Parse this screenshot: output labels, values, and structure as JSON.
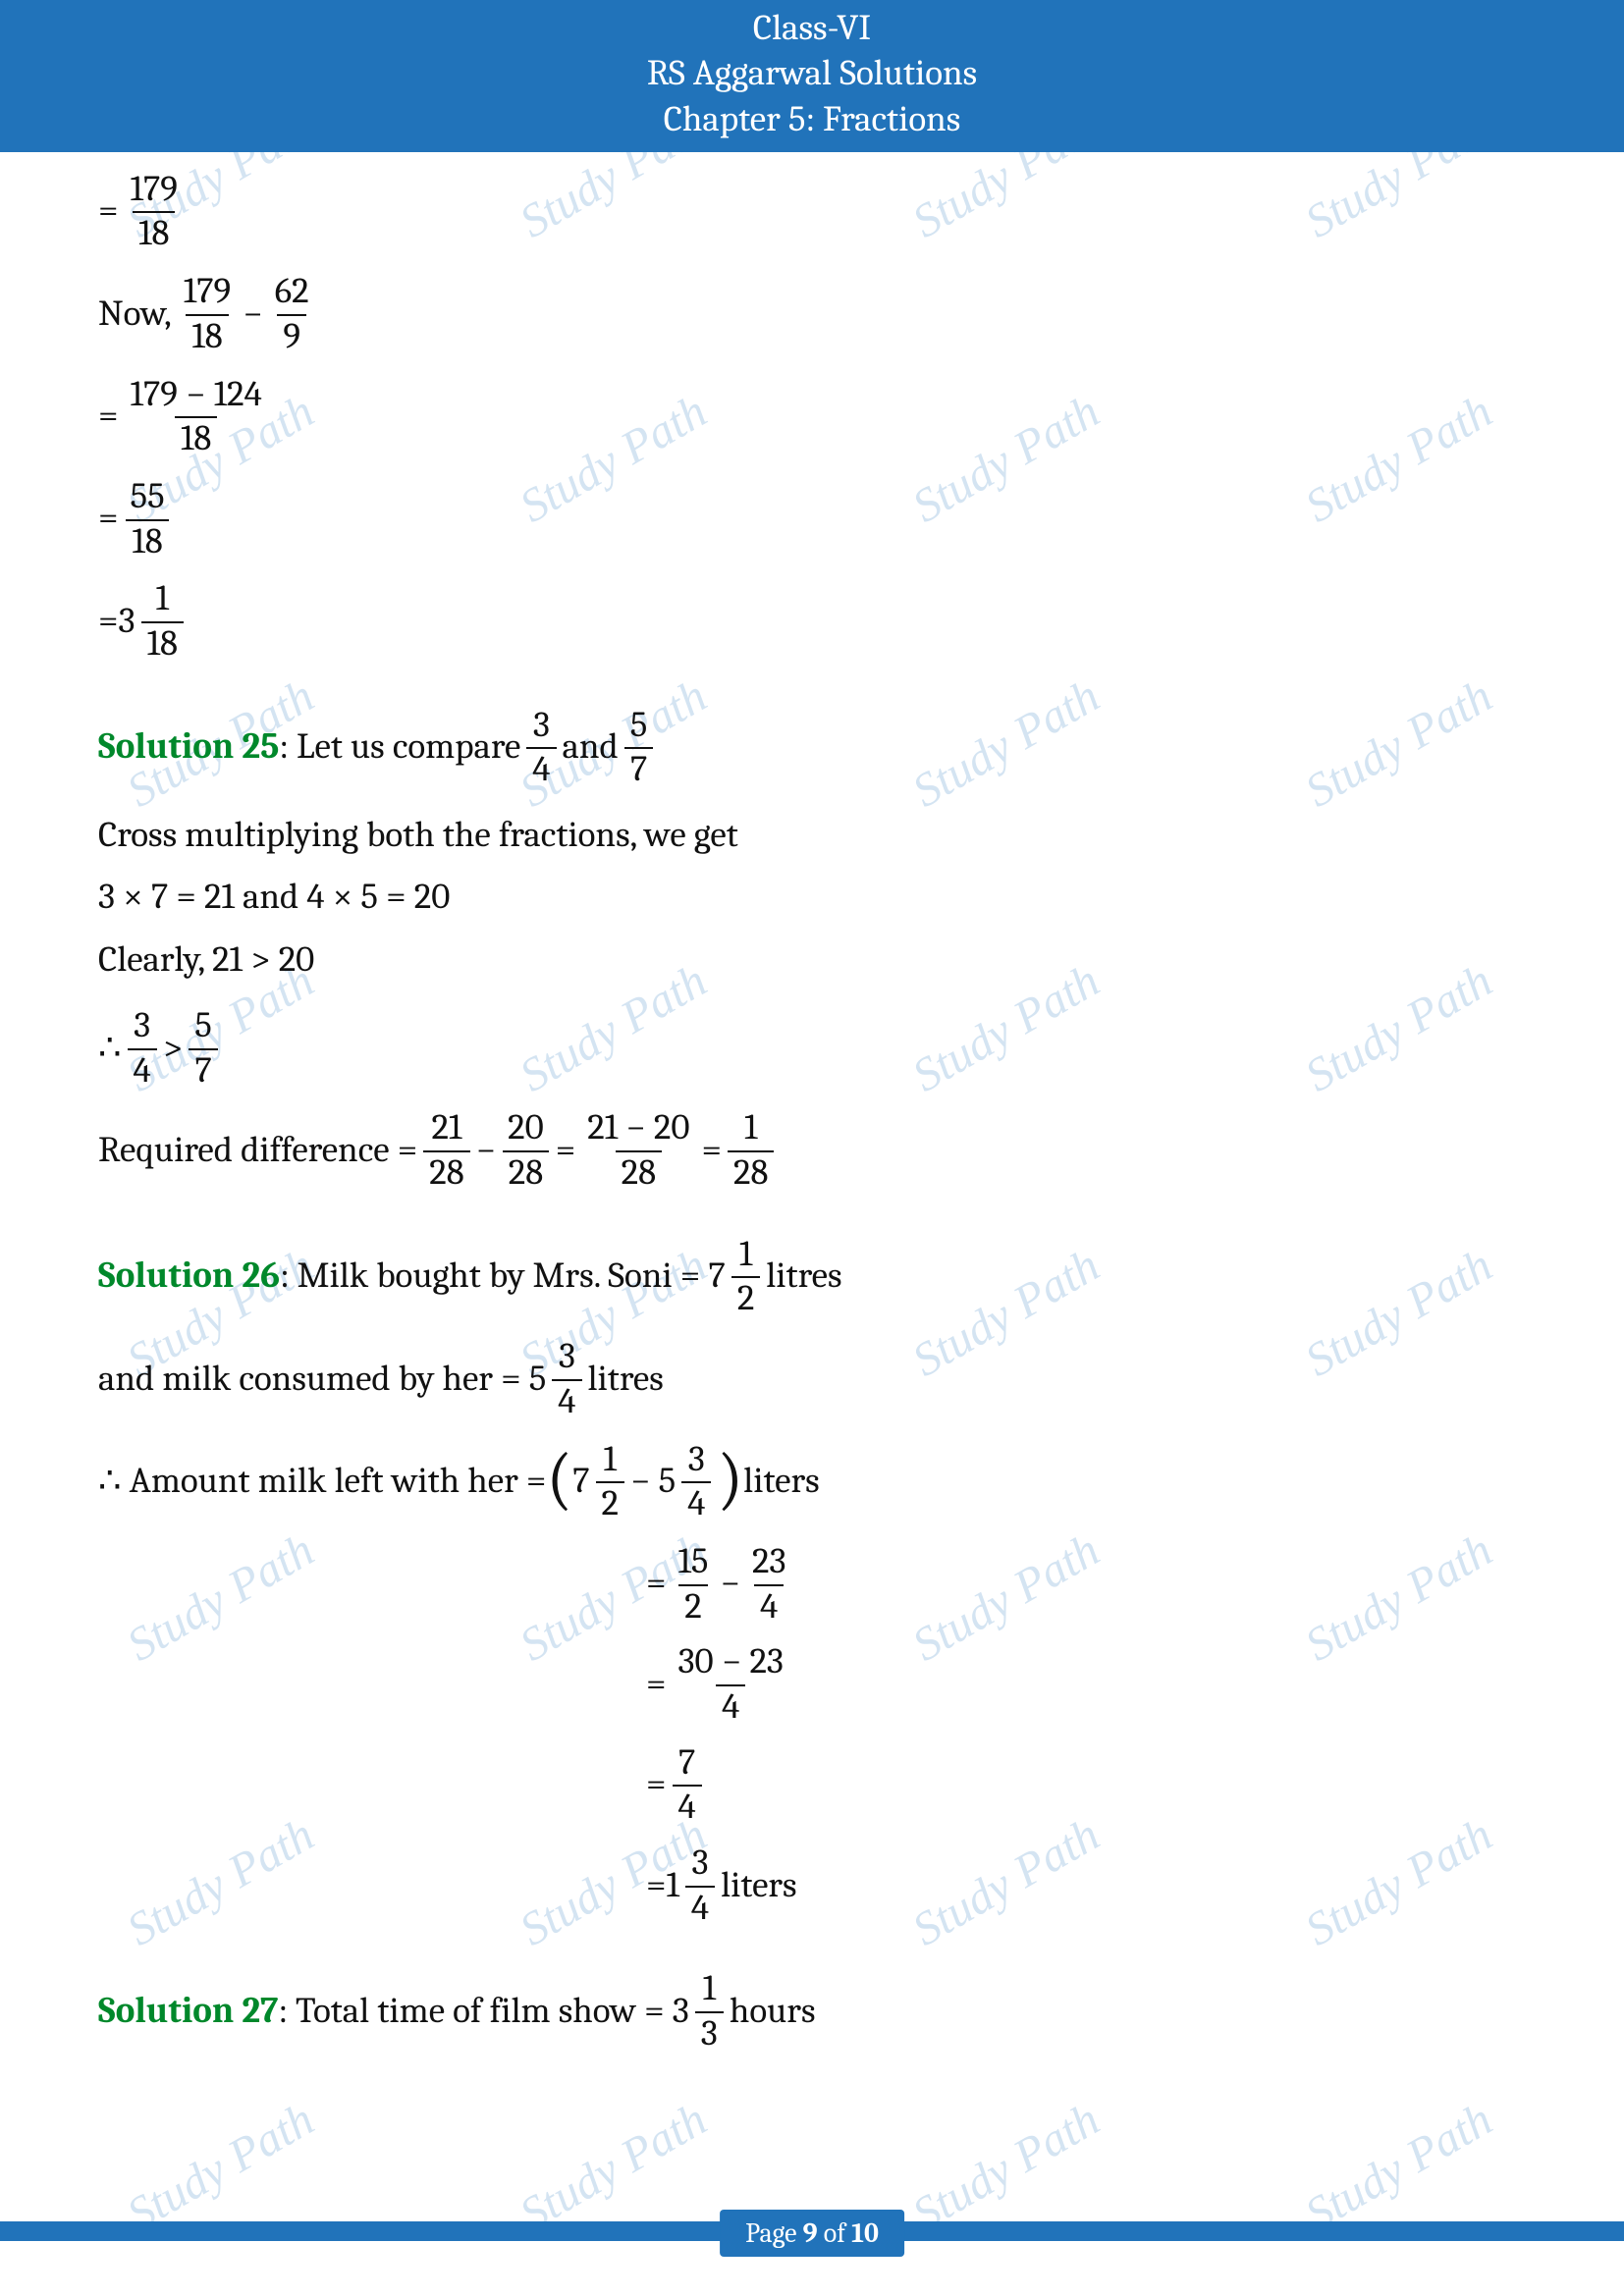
{
  "header": {
    "line1": "Class-VI",
    "line2": "RS Aggarwal Solutions",
    "line3": "Chapter 5: Fractions",
    "bg_color": "#2173ba",
    "text_color": "#ffffff"
  },
  "watermark": {
    "text": "Study Path",
    "color": "rgba(82,147,202,0.25)"
  },
  "cont": {
    "step1": {
      "num": "179",
      "den": "18"
    },
    "now_label": "Now,",
    "now_f1": {
      "num": "179",
      "den": "18"
    },
    "now_f2": {
      "num": "62",
      "den": "9"
    },
    "step2": {
      "num": "179 − 124",
      "den": "18"
    },
    "step3": {
      "num": "55",
      "den": "18"
    },
    "step4_whole": "3",
    "step4": {
      "num": "1",
      "den": "18"
    }
  },
  "s25": {
    "label": "Solution 25",
    "intro": ":  Let us compare ",
    "f1": {
      "num": "3",
      "den": "4"
    },
    "and": " and ",
    "f2": {
      "num": "5",
      "den": "7"
    },
    "line2": "Cross multiplying both the fractions, we get",
    "line3": "3 × 7 = 21 and  4 × 5 = 20",
    "line4": "Clearly, 21 > 20",
    "therefore": "∴ ",
    "cmp_f1": {
      "num": "3",
      "den": "4"
    },
    "cmp_gt": " > ",
    "cmp_f2": {
      "num": "5",
      "den": "7"
    },
    "req_label": "Required difference = ",
    "rd1": {
      "num": "21",
      "den": "28"
    },
    "rd2": {
      "num": "20",
      "den": "28"
    },
    "rd3": {
      "num": "21 − 20",
      "den": "28"
    },
    "rd4": {
      "num": "1",
      "den": "28"
    }
  },
  "s26": {
    "label": "Solution 26",
    "l1a": ": Milk bought by Mrs. Soni  =   7",
    "l1f": {
      "num": "1",
      "den": "2"
    },
    "l1b": "  litres",
    "l2a": "and milk consumed by her  =  5",
    "l2f": {
      "num": "3",
      "den": "4"
    },
    "l2b": " litres",
    "l3a": "∴ Amount milk left with her = ",
    "l3w1": "7",
    "l3f1": {
      "num": "1",
      "den": "2"
    },
    "l3minus": " − 5",
    "l3f2": {
      "num": "3",
      "den": "4"
    },
    "l3b": "  liters",
    "s1": {
      "num": "15",
      "den": "2"
    },
    "s2": {
      "num": "23",
      "den": "4"
    },
    "s3": {
      "num": "30 − 23",
      "den": "4"
    },
    "s4": {
      "num": "7",
      "den": "4"
    },
    "s5w": "1",
    "s5": {
      "num": "3",
      "den": "4"
    },
    "s5b": " liters"
  },
  "s27": {
    "label": "Solution 27",
    "l1a": ": Total time of film show  = 3",
    "l1f": {
      "num": "1",
      "den": "3"
    },
    "l1b": "  hours"
  },
  "footer": {
    "page_pre": "Page ",
    "page_cur": "9",
    "page_mid": " of ",
    "page_tot": "10",
    "bg_color": "#2173ba"
  },
  "symbols": {
    "eq": "= ",
    "minus": " − ",
    "eqmid": " = "
  }
}
